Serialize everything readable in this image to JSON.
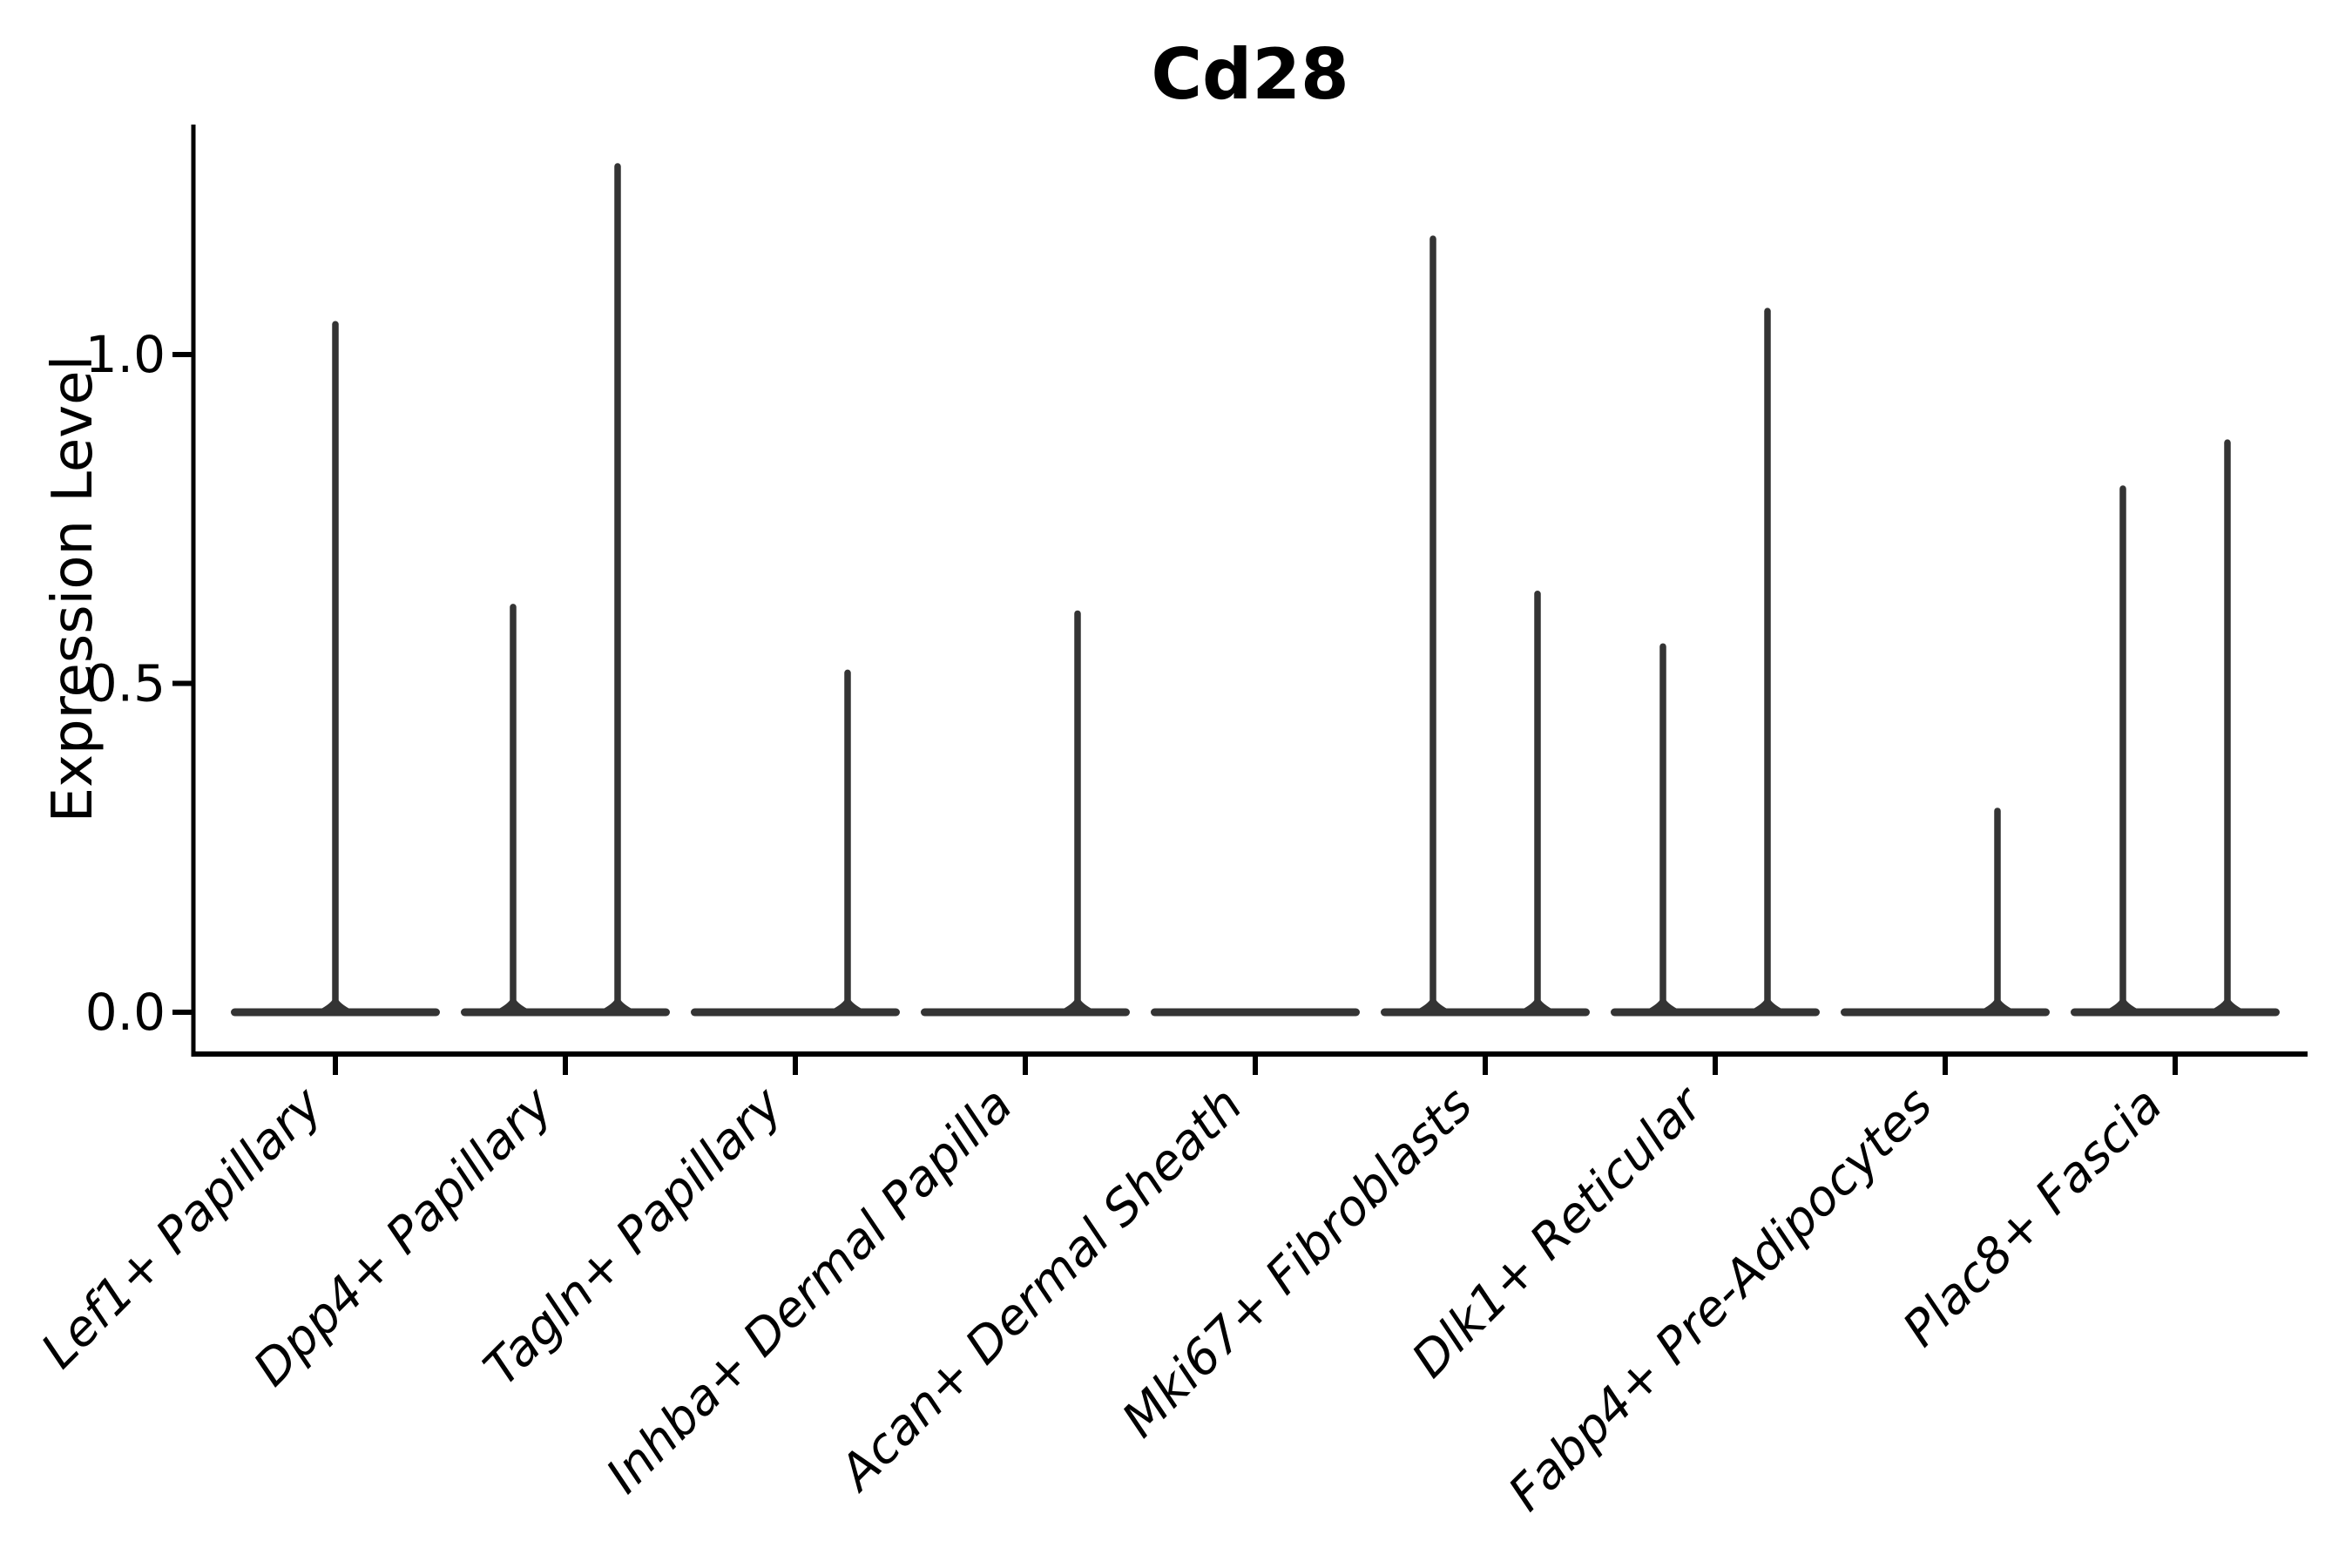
{
  "chart_data": {
    "type": "violin",
    "title": "Cd28",
    "xlabel": "",
    "ylabel": "Expression Level",
    "legend": "none",
    "grid": false,
    "ylim": [
      -0.064,
      1.35
    ],
    "yticks": [
      {
        "value": 0.0,
        "label": "0.0"
      },
      {
        "value": 0.5,
        "label": "0.5"
      },
      {
        "value": 1.0,
        "label": "1.0"
      }
    ],
    "categories": [
      "Lef1+ Papillary",
      "Dpp4+ Papillary",
      "Tagln+ Papillary",
      "Inhba+ Dermal Papilla",
      "Acan+ Dermal Sheath",
      "Mki67+ Fibroblasts",
      "Dlk1+ Reticular",
      "Fabp4+ Pre-Adipocytes",
      "Plac8+ Fascia"
    ],
    "violins": [
      {
        "category": "Lef1+ Papillary",
        "body": "flat-at-zero",
        "spikes": [
          {
            "position": "center",
            "max_expression": 1.05
          }
        ]
      },
      {
        "category": "Dpp4+ Papillary",
        "body": "flat-at-zero",
        "spikes": [
          {
            "position": "left",
            "max_expression": 0.62
          },
          {
            "position": "right",
            "max_expression": 1.29
          }
        ]
      },
      {
        "category": "Tagln+ Papillary",
        "body": "flat-at-zero",
        "spikes": [
          {
            "position": "right",
            "max_expression": 0.52
          }
        ]
      },
      {
        "category": "Inhba+ Dermal Papilla",
        "body": "flat-at-zero",
        "spikes": [
          {
            "position": "right",
            "max_expression": 0.61
          }
        ]
      },
      {
        "category": "Acan+ Dermal Sheath",
        "body": "flat-at-zero",
        "spikes": []
      },
      {
        "category": "Mki67+ Fibroblasts",
        "body": "flat-at-zero",
        "spikes": [
          {
            "position": "left",
            "max_expression": 1.18
          },
          {
            "position": "right",
            "max_expression": 0.64
          }
        ]
      },
      {
        "category": "Dlk1+ Reticular",
        "body": "flat-at-zero",
        "spikes": [
          {
            "position": "left",
            "max_expression": 0.56
          },
          {
            "position": "right",
            "max_expression": 1.07
          }
        ]
      },
      {
        "category": "Fabp4+ Pre-Adipocytes",
        "body": "flat-at-zero",
        "spikes": [
          {
            "position": "right",
            "max_expression": 0.31
          }
        ]
      },
      {
        "category": "Plac8+ Fascia",
        "body": "flat-at-zero",
        "spikes": [
          {
            "position": "left",
            "max_expression": 0.8
          },
          {
            "position": "right",
            "max_expression": 0.87
          }
        ]
      }
    ],
    "colors": {
      "violin": "#343434",
      "axis": "#000000",
      "text": "#000000",
      "background": "#ffffff"
    }
  }
}
